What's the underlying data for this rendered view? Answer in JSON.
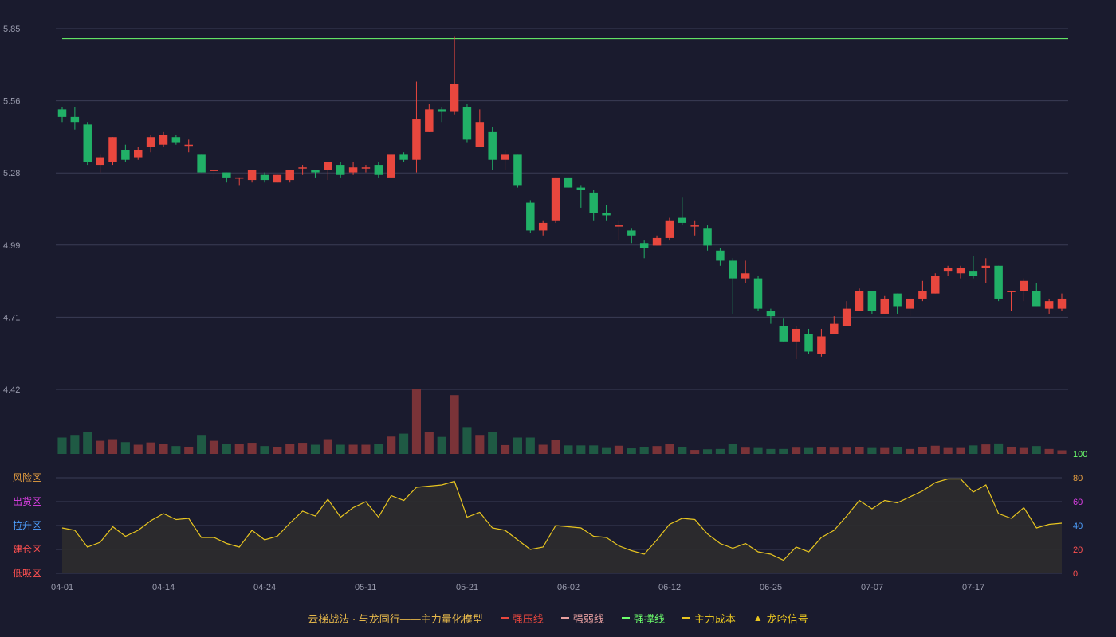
{
  "colors": {
    "background": "#1a1b2e",
    "up": "#e8473e",
    "down": "#21b067",
    "grid": "#3a3d55",
    "axis_text": "#9a9cae",
    "support_line": "#6cff6c",
    "indicator_line": "#e8c520",
    "indicator_fill": "#2e2c2e"
  },
  "chart_data": [
    {
      "type": "candlestick",
      "y_ticks": [
        "5.85",
        "5.56",
        "5.28",
        "4.99",
        "4.71",
        "4.42"
      ],
      "ylim": [
        4.42,
        5.85
      ],
      "x_ticks": [
        "04-01",
        "04-14",
        "04-24",
        "05-11",
        "05-21",
        "06-02",
        "06-12",
        "06-25",
        "07-07",
        "07-17"
      ],
      "horizontal_line": 5.81,
      "candles": [
        [
          5.53,
          5.5,
          5.54,
          5.48
        ],
        [
          5.5,
          5.48,
          5.54,
          5.45
        ],
        [
          5.47,
          5.32,
          5.48,
          5.31
        ],
        [
          5.31,
          5.34,
          5.35,
          5.28
        ],
        [
          5.32,
          5.42,
          5.42,
          5.31
        ],
        [
          5.37,
          5.33,
          5.39,
          5.32
        ],
        [
          5.34,
          5.37,
          5.38,
          5.33
        ],
        [
          5.38,
          5.42,
          5.43,
          5.36
        ],
        [
          5.39,
          5.43,
          5.44,
          5.38
        ],
        [
          5.42,
          5.4,
          5.43,
          5.39
        ],
        [
          5.39,
          5.39,
          5.41,
          5.36
        ],
        [
          5.35,
          5.28,
          5.35,
          5.28
        ],
        [
          5.29,
          5.29,
          5.29,
          5.25
        ],
        [
          5.28,
          5.26,
          5.28,
          5.24
        ],
        [
          5.26,
          5.26,
          5.26,
          5.23
        ],
        [
          5.25,
          5.29,
          5.29,
          5.24
        ],
        [
          5.27,
          5.25,
          5.28,
          5.24
        ],
        [
          5.24,
          5.27,
          5.27,
          5.24
        ],
        [
          5.25,
          5.29,
          5.29,
          5.24
        ],
        [
          5.3,
          5.3,
          5.31,
          5.27
        ],
        [
          5.29,
          5.28,
          5.29,
          5.26
        ],
        [
          5.29,
          5.32,
          5.32,
          5.25
        ],
        [
          5.31,
          5.27,
          5.32,
          5.26
        ],
        [
          5.28,
          5.3,
          5.32,
          5.27
        ],
        [
          5.3,
          5.3,
          5.31,
          5.28
        ],
        [
          5.31,
          5.27,
          5.32,
          5.26
        ],
        [
          5.26,
          5.35,
          5.35,
          5.26
        ],
        [
          5.35,
          5.33,
          5.36,
          5.32
        ],
        [
          5.33,
          5.49,
          5.64,
          5.28
        ],
        [
          5.44,
          5.53,
          5.55,
          5.44
        ],
        [
          5.53,
          5.52,
          5.54,
          5.48
        ],
        [
          5.52,
          5.63,
          5.82,
          5.51
        ],
        [
          5.54,
          5.41,
          5.55,
          5.4
        ],
        [
          5.38,
          5.48,
          5.53,
          5.38
        ],
        [
          5.44,
          5.33,
          5.46,
          5.29
        ],
        [
          5.33,
          5.35,
          5.37,
          5.29
        ],
        [
          5.35,
          5.23,
          5.35,
          5.22
        ],
        [
          5.16,
          5.05,
          5.17,
          5.04
        ],
        [
          5.05,
          5.08,
          5.09,
          5.03
        ],
        [
          5.09,
          5.26,
          5.26,
          5.08
        ],
        [
          5.26,
          5.22,
          5.26,
          5.22
        ],
        [
          5.22,
          5.21,
          5.23,
          5.14
        ],
        [
          5.2,
          5.12,
          5.21,
          5.09
        ],
        [
          5.12,
          5.11,
          5.15,
          5.09
        ],
        [
          5.07,
          5.07,
          5.09,
          5.01
        ],
        [
          5.05,
          5.03,
          5.06,
          5.0
        ],
        [
          5.0,
          4.98,
          5.01,
          4.94
        ],
        [
          4.99,
          5.02,
          5.03,
          4.99
        ],
        [
          5.02,
          5.09,
          5.1,
          5.01
        ],
        [
          5.1,
          5.08,
          5.18,
          5.07
        ],
        [
          5.07,
          5.07,
          5.09,
          5.03
        ],
        [
          5.06,
          4.99,
          5.07,
          4.97
        ],
        [
          4.97,
          4.93,
          4.98,
          4.91
        ],
        [
          4.93,
          4.86,
          4.94,
          4.72
        ],
        [
          4.86,
          4.88,
          4.93,
          4.84
        ],
        [
          4.86,
          4.74,
          4.87,
          4.73
        ],
        [
          4.73,
          4.71,
          4.74,
          4.68
        ],
        [
          4.67,
          4.61,
          4.7,
          4.61
        ],
        [
          4.61,
          4.66,
          4.67,
          4.54
        ],
        [
          4.64,
          4.57,
          4.66,
          4.56
        ],
        [
          4.56,
          4.63,
          4.66,
          4.55
        ],
        [
          4.64,
          4.68,
          4.71,
          4.64
        ],
        [
          4.67,
          4.74,
          4.77,
          4.67
        ],
        [
          4.73,
          4.81,
          4.82,
          4.73
        ],
        [
          4.81,
          4.73,
          4.81,
          4.72
        ],
        [
          4.72,
          4.78,
          4.79,
          4.72
        ],
        [
          4.8,
          4.75,
          4.8,
          4.72
        ],
        [
          4.74,
          4.78,
          4.79,
          4.71
        ],
        [
          4.78,
          4.81,
          4.85,
          4.77
        ],
        [
          4.8,
          4.87,
          4.88,
          4.8
        ],
        [
          4.89,
          4.9,
          4.91,
          4.87
        ],
        [
          4.88,
          4.9,
          4.91,
          4.86
        ],
        [
          4.89,
          4.87,
          4.95,
          4.86
        ],
        [
          4.9,
          4.91,
          4.94,
          4.84
        ],
        [
          4.91,
          4.78,
          4.91,
          4.77
        ],
        [
          4.81,
          4.81,
          4.81,
          4.73
        ],
        [
          4.81,
          4.85,
          4.86,
          4.77
        ],
        [
          4.81,
          4.75,
          4.84,
          4.75
        ],
        [
          4.74,
          4.77,
          4.78,
          4.72
        ],
        [
          4.74,
          4.78,
          4.8,
          4.73
        ]
      ],
      "volume": [
        50,
        58,
        66,
        40,
        45,
        36,
        28,
        35,
        30,
        24,
        22,
        58,
        40,
        31,
        30,
        34,
        24,
        21,
        30,
        34,
        28,
        45,
        28,
        28,
        28,
        30,
        53,
        62,
        200,
        68,
        52,
        180,
        82,
        58,
        66,
        27,
        50,
        50,
        28,
        42,
        26,
        26,
        26,
        18,
        25,
        17,
        21,
        24,
        31,
        20,
        12,
        14,
        15,
        30,
        19,
        18,
        15,
        15,
        19,
        18,
        20,
        19,
        19,
        20,
        18,
        18,
        20,
        15,
        20,
        25,
        18,
        18,
        26,
        29,
        32,
        22,
        18,
        24,
        15,
        11
      ]
    },
    {
      "type": "line",
      "y_ticks": [
        "100",
        "80",
        "60",
        "40",
        "20",
        "0"
      ],
      "ylim": [
        0,
        100
      ],
      "zone_labels": [
        "风险区",
        "出货区",
        "拉升区",
        "建仓区",
        "低吸区"
      ],
      "values": [
        38,
        36,
        22,
        26,
        39,
        31,
        36,
        44,
        50,
        45,
        46,
        30,
        30,
        25,
        22,
        36,
        28,
        31,
        42,
        52,
        48,
        62,
        47,
        55,
        60,
        47,
        65,
        61,
        72,
        73,
        74,
        77,
        47,
        51,
        38,
        36,
        28,
        20,
        22,
        40,
        39,
        38,
        31,
        30,
        23,
        19,
        16,
        28,
        41,
        46,
        45,
        33,
        25,
        21,
        25,
        18,
        16,
        11,
        22,
        18,
        30,
        36,
        48,
        61,
        54,
        61,
        59,
        64,
        69,
        76,
        79,
        79,
        68,
        74,
        50,
        46,
        55,
        38,
        41,
        42
      ]
    }
  ],
  "legend": {
    "title": "云梯战法 · 与龙同行——主力量化模型",
    "items": [
      {
        "label": "强压线",
        "color": "#e8473e",
        "style": "solid"
      },
      {
        "label": "强弱线",
        "color": "#e8a0a0",
        "style": "dashed"
      },
      {
        "label": "强撑线",
        "color": "#6cff6c",
        "style": "solid"
      },
      {
        "label": "主力成本",
        "color": "#e8c520",
        "style": "dashed"
      },
      {
        "label": "龙吟信号",
        "color": "#e8c520",
        "style": "triangle",
        "icon": "triangle-icon"
      }
    ]
  }
}
